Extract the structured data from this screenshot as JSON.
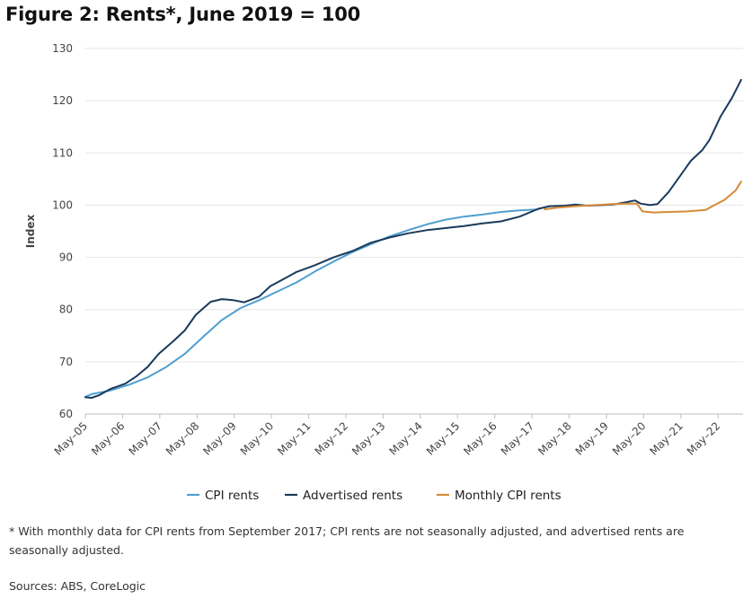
{
  "title": "Figure 2: Rents*, June 2019 = 100",
  "footnote": "* With monthly data for CPI rents from September 2017; CPI rents are not seasonally adjusted, and advertised rents are seasonally adjusted.",
  "sources": "Sources: ABS, CoreLogic",
  "chart_data": {
    "type": "line",
    "title": "Figure 2: Rents*, June 2019 = 100",
    "xlabel": "",
    "ylabel": "Index",
    "ylim": [
      60,
      130
    ],
    "yticks": [
      60,
      70,
      80,
      90,
      100,
      110,
      120,
      130
    ],
    "xlim": [
      2005.33,
      2023.0
    ],
    "xticks": [
      {
        "label": "May–05",
        "value": 2005.33
      },
      {
        "label": "May–06",
        "value": 2006.33
      },
      {
        "label": "May–07",
        "value": 2007.33
      },
      {
        "label": "May–08",
        "value": 2008.33
      },
      {
        "label": "May–09",
        "value": 2009.33
      },
      {
        "label": "May–10",
        "value": 2010.33
      },
      {
        "label": "May–11",
        "value": 2011.33
      },
      {
        "label": "May–12",
        "value": 2012.33
      },
      {
        "label": "May–13",
        "value": 2013.33
      },
      {
        "label": "May–14",
        "value": 2014.33
      },
      {
        "label": "May–15",
        "value": 2015.33
      },
      {
        "label": "May–16",
        "value": 2016.33
      },
      {
        "label": "May–17",
        "value": 2017.33
      },
      {
        "label": "May–18",
        "value": 2018.33
      },
      {
        "label": "May–19",
        "value": 2019.33
      },
      {
        "label": "May–20",
        "value": 2020.33
      },
      {
        "label": "May–21",
        "value": 2021.33
      },
      {
        "label": "May–22",
        "value": 2022.33
      }
    ],
    "grid": "horizontal",
    "legend_position": "bottom",
    "series": [
      {
        "name": "CPI rents",
        "color": "#4f9fd0",
        "points": [
          [
            2005.33,
            63.3
          ],
          [
            2005.5,
            63.8
          ],
          [
            2006.0,
            64.5
          ],
          [
            2006.5,
            65.6
          ],
          [
            2007.0,
            67.0
          ],
          [
            2007.5,
            69.0
          ],
          [
            2008.0,
            71.5
          ],
          [
            2008.5,
            74.8
          ],
          [
            2009.0,
            78.0
          ],
          [
            2009.5,
            80.3
          ],
          [
            2010.0,
            81.8
          ],
          [
            2010.5,
            83.5
          ],
          [
            2011.0,
            85.2
          ],
          [
            2011.5,
            87.3
          ],
          [
            2012.0,
            89.2
          ],
          [
            2012.5,
            91.0
          ],
          [
            2013.0,
            92.5
          ],
          [
            2013.5,
            94.0
          ],
          [
            2014.0,
            95.2
          ],
          [
            2014.5,
            96.3
          ],
          [
            2015.0,
            97.2
          ],
          [
            2015.5,
            97.8
          ],
          [
            2016.0,
            98.2
          ],
          [
            2016.5,
            98.7
          ],
          [
            2017.0,
            99.0
          ],
          [
            2017.5,
            99.2
          ]
        ]
      },
      {
        "name": "Advertised rents",
        "color": "#1a3a5c",
        "points": [
          [
            2005.33,
            63.2
          ],
          [
            2005.5,
            63.1
          ],
          [
            2005.7,
            63.6
          ],
          [
            2006.0,
            64.8
          ],
          [
            2006.4,
            65.8
          ],
          [
            2006.7,
            67.2
          ],
          [
            2007.0,
            69.0
          ],
          [
            2007.3,
            71.5
          ],
          [
            2007.7,
            74.0
          ],
          [
            2008.0,
            76.0
          ],
          [
            2008.3,
            79.0
          ],
          [
            2008.7,
            81.5
          ],
          [
            2009.0,
            82.0
          ],
          [
            2009.3,
            81.8
          ],
          [
            2009.6,
            81.4
          ],
          [
            2010.0,
            82.5
          ],
          [
            2010.3,
            84.5
          ],
          [
            2010.7,
            86.0
          ],
          [
            2011.0,
            87.2
          ],
          [
            2011.5,
            88.5
          ],
          [
            2012.0,
            90.0
          ],
          [
            2012.5,
            91.2
          ],
          [
            2013.0,
            92.8
          ],
          [
            2013.5,
            93.8
          ],
          [
            2014.0,
            94.6
          ],
          [
            2014.5,
            95.2
          ],
          [
            2015.0,
            95.6
          ],
          [
            2015.5,
            96.0
          ],
          [
            2016.0,
            96.5
          ],
          [
            2016.5,
            96.9
          ],
          [
            2017.0,
            97.8
          ],
          [
            2017.5,
            99.3
          ],
          [
            2017.8,
            99.8
          ],
          [
            2018.2,
            99.9
          ],
          [
            2018.5,
            100.1
          ],
          [
            2018.8,
            99.9
          ],
          [
            2019.2,
            100.0
          ],
          [
            2019.5,
            100.1
          ],
          [
            2019.9,
            100.6
          ],
          [
            2020.1,
            100.9
          ],
          [
            2020.25,
            100.3
          ],
          [
            2020.5,
            100.0
          ],
          [
            2020.7,
            100.2
          ],
          [
            2021.0,
            102.5
          ],
          [
            2021.3,
            105.5
          ],
          [
            2021.6,
            108.5
          ],
          [
            2021.9,
            110.5
          ],
          [
            2022.1,
            112.5
          ],
          [
            2022.4,
            117.0
          ],
          [
            2022.7,
            120.5
          ],
          [
            2022.95,
            124.0
          ]
        ]
      },
      {
        "name": "Monthly CPI rents",
        "color": "#d68a36",
        "points": [
          [
            2017.67,
            99.2
          ],
          [
            2018.0,
            99.5
          ],
          [
            2018.5,
            99.8
          ],
          [
            2019.0,
            100.0
          ],
          [
            2019.5,
            100.2
          ],
          [
            2019.9,
            100.3
          ],
          [
            2020.15,
            100.3
          ],
          [
            2020.3,
            98.8
          ],
          [
            2020.6,
            98.6
          ],
          [
            2021.0,
            98.7
          ],
          [
            2021.5,
            98.8
          ],
          [
            2022.0,
            99.1
          ],
          [
            2022.2,
            99.9
          ],
          [
            2022.5,
            101.0
          ],
          [
            2022.8,
            102.8
          ],
          [
            2022.95,
            104.5
          ]
        ]
      }
    ]
  }
}
